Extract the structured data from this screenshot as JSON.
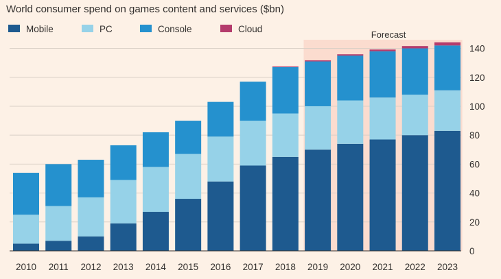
{
  "chart_data": {
    "type": "bar",
    "stacked": true,
    "title": "World consumer spend on games content and services ($bn)",
    "categories": [
      "2010",
      "2011",
      "2012",
      "2013",
      "2014",
      "2015",
      "2016",
      "2017",
      "2018",
      "2019",
      "2020",
      "2021",
      "2022",
      "2023"
    ],
    "series": [
      {
        "name": "Mobile",
        "color": "#1e5a8f",
        "values": [
          5,
          7,
          10,
          19,
          27,
          36,
          48,
          59,
          65,
          70,
          74,
          77,
          80,
          83
        ]
      },
      {
        "name": "PC",
        "color": "#96d2e8",
        "values": [
          20,
          24,
          27,
          30,
          31,
          31,
          31,
          31,
          30,
          30,
          30,
          29,
          28,
          28
        ]
      },
      {
        "name": "Console",
        "color": "#2591ce",
        "values": [
          29,
          29,
          26,
          24,
          24,
          23,
          24,
          27,
          32,
          31,
          31,
          32,
          32,
          31
        ]
      },
      {
        "name": "Cloud",
        "color": "#b43b6c",
        "values": [
          0,
          0,
          0,
          0,
          0,
          0,
          0,
          0,
          0.5,
          0.7,
          0.9,
          1.2,
          1.6,
          2.2
        ]
      }
    ],
    "ylim": [
      0,
      145
    ],
    "yticks": [
      0,
      20,
      40,
      60,
      80,
      100,
      120,
      140
    ],
    "ytick_labels": [
      "0",
      "20",
      "40",
      "60",
      "80",
      "100",
      "120",
      "140"
    ],
    "y_axis_side": "right",
    "grid": true,
    "legend_position": "top-left",
    "forecast": {
      "label": "Forecast",
      "start": "2019",
      "end": "2023",
      "color": "#fbdccf"
    }
  }
}
